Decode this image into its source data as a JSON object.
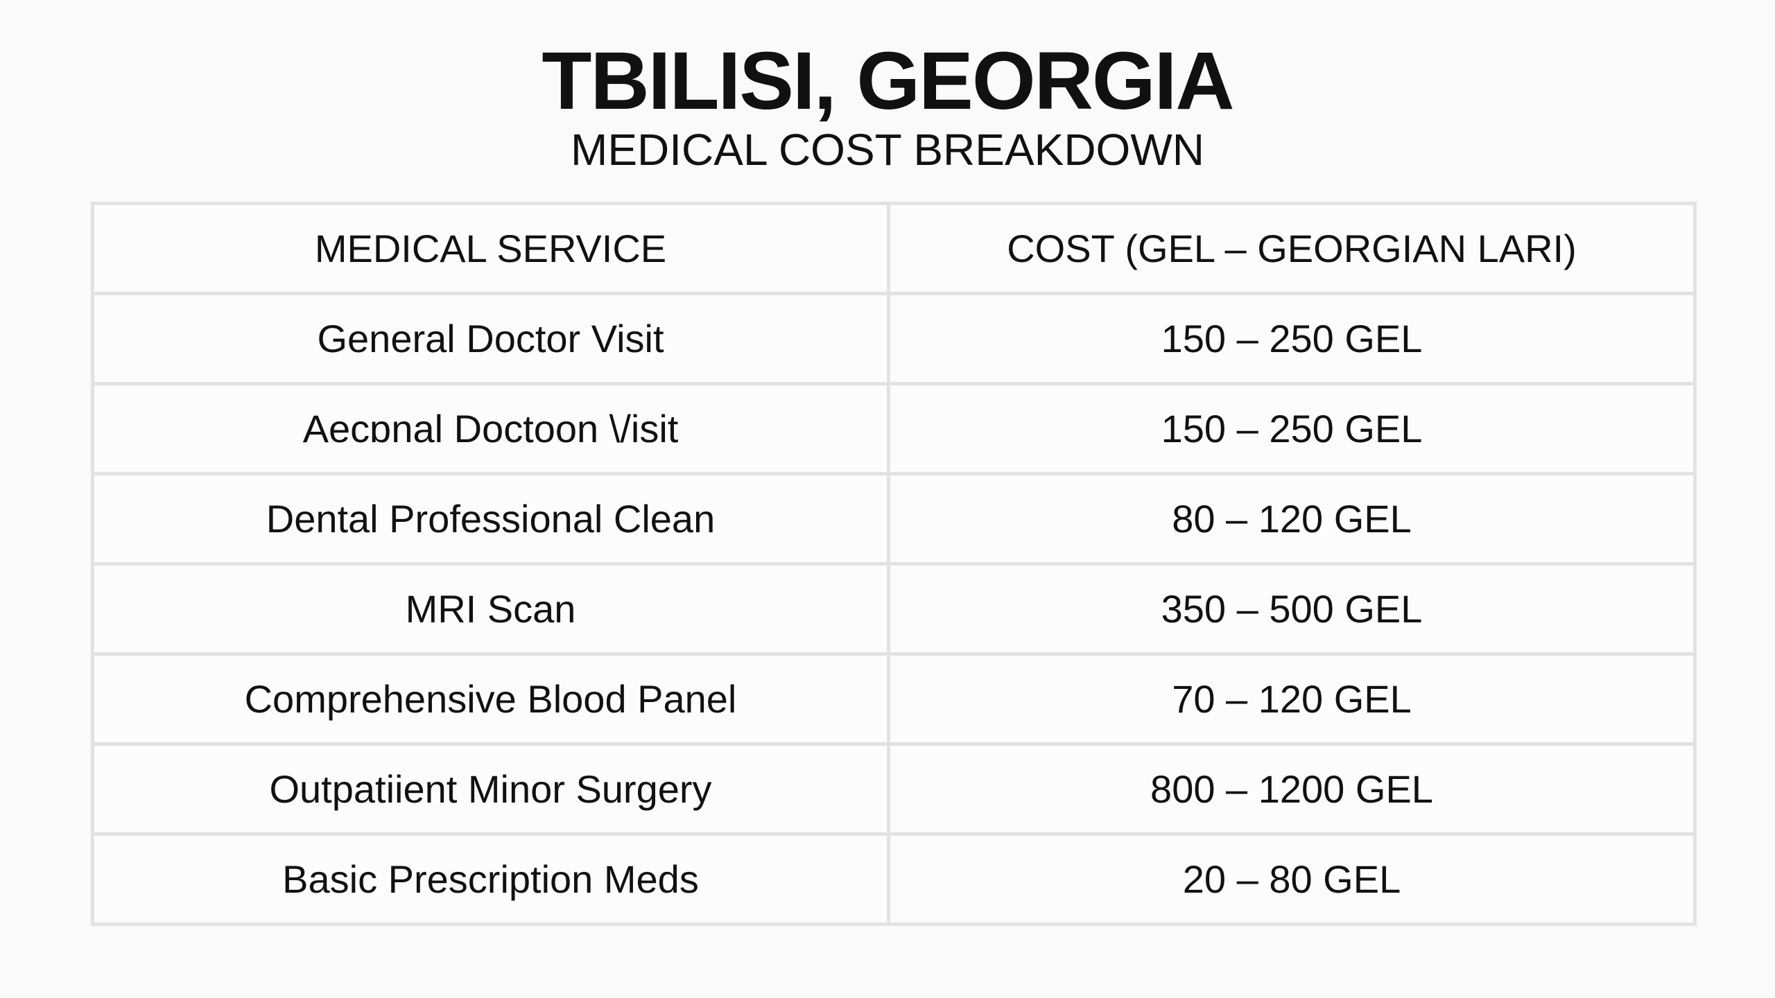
{
  "header": {
    "title": "TBILISI, GEORGIA",
    "subtitle": "MEDICAL COST BREAKDOWN"
  },
  "table": {
    "columns": [
      "MEDICAL SERVICE",
      "COST (GEL – GEORGIAN LARI)"
    ],
    "rows": [
      [
        "General Doctor Visit",
        "150 – 250 GEL"
      ],
      [
        "Aecɒnal Doctoon \\/isit",
        "150 – 250 GEL"
      ],
      [
        "Dental Professional Clean",
        "80 – 120 GEL"
      ],
      [
        "MRI Scan",
        "350 – 500 GEL"
      ],
      [
        "Comprehensive Blood Panel",
        "70 – 120 GEL"
      ],
      [
        "Outpatiient Minor Surgery",
        "800 – 1200 GEL"
      ],
      [
        "Basic Prescription Meds",
        "20 – 80 GEL"
      ]
    ]
  }
}
